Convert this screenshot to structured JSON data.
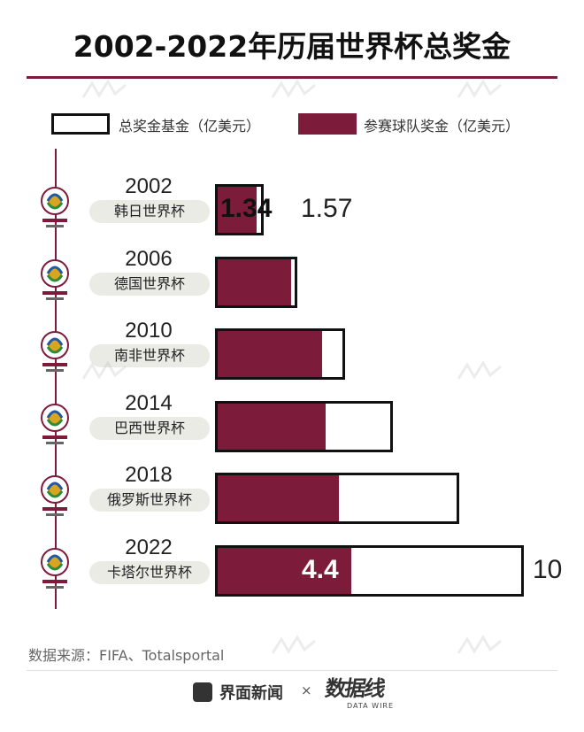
{
  "title": "2002-2022年历届世界杯总奖金",
  "legend": {
    "total_label": "总奖金基金（亿美元）",
    "team_label": "参赛球队奖金（亿美元）"
  },
  "colors": {
    "accent": "#7d1c3a",
    "outline": "#111111",
    "pill_bg": "#ebebe6"
  },
  "rows": [
    {
      "year": "2002",
      "name": "韩日世界杯",
      "emblem": "korea-japan-2002-emblem",
      "team_label": "1.34",
      "total_label": "1.57"
    },
    {
      "year": "2006",
      "name": "德国世界杯",
      "emblem": "germany-2006-emblem"
    },
    {
      "year": "2010",
      "name": "南非世界杯",
      "emblem": "south-africa-2010-emblem"
    },
    {
      "year": "2014",
      "name": "巴西世界杯",
      "emblem": "brazil-2014-emblem"
    },
    {
      "year": "2018",
      "name": "俄罗斯世界杯",
      "emblem": "russia-2018-emblem"
    },
    {
      "year": "2022",
      "name": "卡塔尔世界杯",
      "emblem": "qatar-2022-emblem",
      "team_label": "4.4",
      "total_label": "10"
    }
  ],
  "chart_data": {
    "type": "bar",
    "orientation": "horizontal",
    "categories": [
      "2002",
      "2006",
      "2010",
      "2014",
      "2018",
      "2022"
    ],
    "series": [
      {
        "name": "总奖金基金（亿美元）",
        "values": [
          1.57,
          2.66,
          4.2,
          5.76,
          7.91,
          10
        ]
      },
      {
        "name": "参赛球队奖金（亿美元）",
        "values": [
          1.34,
          2.45,
          3.48,
          3.58,
          4.0,
          4.4
        ]
      }
    ],
    "xlim": [
      0,
      10
    ],
    "legend_position": "top",
    "grid": false
  },
  "source": "数据来源：FIFA、Totalsportal",
  "footer": {
    "brand": "界面新闻",
    "separator": "×",
    "partner": "数据线",
    "partner_sub": "DATA WIRE"
  }
}
